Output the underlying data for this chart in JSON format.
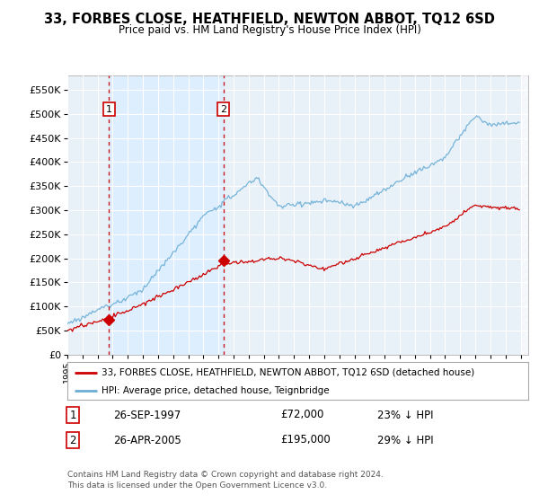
{
  "title": "33, FORBES CLOSE, HEATHFIELD, NEWTON ABBOT, TQ12 6SD",
  "subtitle": "Price paid vs. HM Land Registry's House Price Index (HPI)",
  "legend_line1": "33, FORBES CLOSE, HEATHFIELD, NEWTON ABBOT, TQ12 6SD (detached house)",
  "legend_line2": "HPI: Average price, detached house, Teignbridge",
  "annotation1_date": "26-SEP-1997",
  "annotation1_price": "£72,000",
  "annotation1_hpi": "23% ↓ HPI",
  "annotation1_year": 1997.75,
  "annotation1_value": 72000,
  "annotation2_date": "26-APR-2005",
  "annotation2_price": "£195,000",
  "annotation2_hpi": "29% ↓ HPI",
  "annotation2_year": 2005.33,
  "annotation2_value": 195000,
  "footer_line1": "Contains HM Land Registry data © Crown copyright and database right 2024.",
  "footer_line2": "This data is licensed under the Open Government Licence v3.0.",
  "ylim": [
    0,
    580000
  ],
  "yticks": [
    0,
    50000,
    100000,
    150000,
    200000,
    250000,
    300000,
    350000,
    400000,
    450000,
    500000,
    550000
  ],
  "ytick_labels": [
    "£0",
    "£50K",
    "£100K",
    "£150K",
    "£200K",
    "£250K",
    "£300K",
    "£350K",
    "£400K",
    "£450K",
    "£500K",
    "£550K"
  ],
  "hpi_color": "#6baed6",
  "price_color": "#cc0000",
  "bg_color": "#e8f0f8",
  "highlight_color": "#ddeeff",
  "grid_color": "#ffffff",
  "xlim_start": 1995.0,
  "xlim_end": 2025.5
}
